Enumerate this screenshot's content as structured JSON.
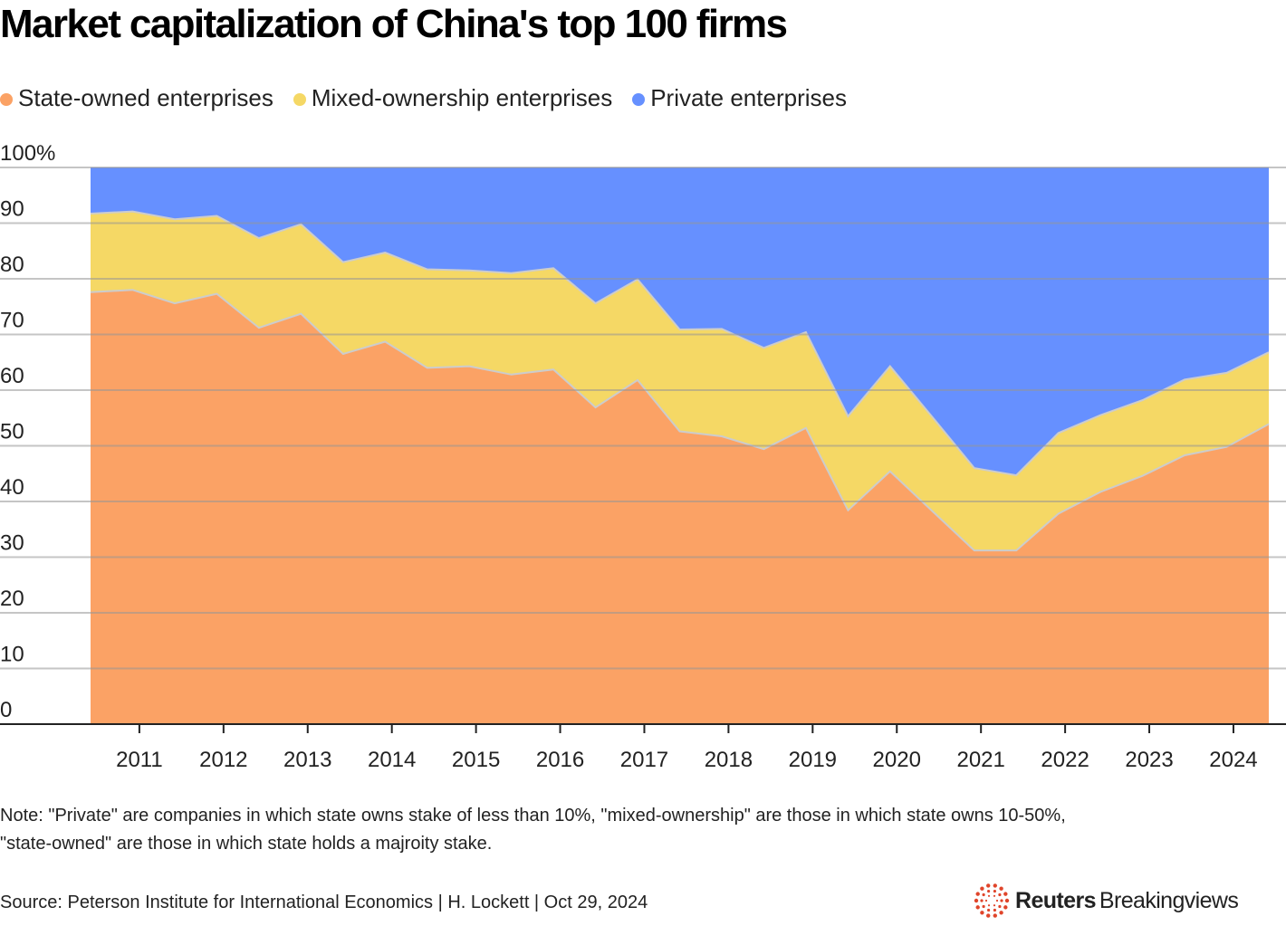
{
  "colors": {
    "state": "#FBA265",
    "mixed": "#F5D865",
    "private": "#6690FF",
    "grid": "#c4c4c4",
    "boundary": "#cccccc",
    "axis": "#222222",
    "brand_accent": "#E0452B"
  },
  "header": {
    "title": "Market capitalization of China's top 100 firms"
  },
  "legend": [
    {
      "key": "state",
      "label": "State-owned enterprises"
    },
    {
      "key": "mixed",
      "label": "Mixed-ownership enterprises"
    },
    {
      "key": "private",
      "label": "Private enterprises"
    }
  ],
  "footer": {
    "note_line1": "Note: \"Private\" are companies in which state owns stake of less than 10%, \"mixed-ownership\" are those in which state owns 10-50%,",
    "note_line2": "\"state-owned\" are those in which state holds a majroity stake.",
    "source": "Source: Peterson Institute for International Economics | H. Lockett | Oct 29, 2024",
    "brand_name": "Reuters",
    "brand_sub": "Breakingviews"
  },
  "chart_data": {
    "type": "area",
    "stacked": true,
    "title": "Market capitalization of China's top 100 firms",
    "xlabel": "",
    "ylabel": "",
    "ylim": [
      0,
      100
    ],
    "y_ticks": [
      0,
      10,
      20,
      30,
      40,
      50,
      60,
      70,
      80,
      90,
      100
    ],
    "y_tick_labels": [
      "0",
      "10",
      "20",
      "30",
      "40",
      "50",
      "60",
      "70",
      "80",
      "90",
      "100%"
    ],
    "x_start": 2010.42,
    "x_step": 0.5,
    "xlim": [
      2010.42,
      2024.42
    ],
    "x_ticks": [
      2011,
      2012,
      2013,
      2014,
      2015,
      2016,
      2017,
      2018,
      2019,
      2020,
      2021,
      2022,
      2023,
      2024
    ],
    "x_tick_labels": [
      "2011",
      "2012",
      "2013",
      "2014",
      "2015",
      "2016",
      "2017",
      "2018",
      "2019",
      "2020",
      "2021",
      "2022",
      "2023",
      "2024"
    ],
    "grid": true,
    "legend_position": "top-left",
    "series": [
      {
        "name": "State-owned enterprises",
        "key": "state",
        "values": [
          77.6,
          78.0,
          75.6,
          77.3,
          71.2,
          73.7,
          66.5,
          68.7,
          64.0,
          64.3,
          62.8,
          63.7,
          56.9,
          61.8,
          52.6,
          51.7,
          49.4,
          53.2,
          38.4,
          45.4,
          38.3,
          31.2,
          31.2,
          37.8,
          41.7,
          44.6,
          48.3,
          49.8,
          53.9
        ]
      },
      {
        "name": "Mixed-ownership enterprises",
        "key": "mixed",
        "values": [
          14.1,
          14.1,
          15.1,
          14.0,
          16.1,
          16.1,
          16.5,
          16.0,
          17.7,
          17.2,
          18.2,
          18.2,
          18.7,
          18.1,
          18.3,
          19.3,
          18.2,
          17.2,
          16.9,
          18.9,
          16.9,
          14.8,
          13.5,
          14.5,
          13.8,
          13.6,
          13.6,
          13.3,
          12.9
        ]
      },
      {
        "name": "Private enterprises",
        "key": "private",
        "values": [
          8.3,
          7.9,
          9.3,
          8.7,
          12.7,
          10.2,
          17.0,
          15.3,
          18.3,
          18.5,
          19.0,
          18.1,
          24.4,
          20.1,
          29.1,
          29.0,
          32.4,
          29.6,
          44.7,
          35.7,
          44.8,
          54.0,
          55.3,
          47.7,
          44.5,
          41.8,
          38.1,
          36.9,
          33.2
        ]
      }
    ]
  }
}
